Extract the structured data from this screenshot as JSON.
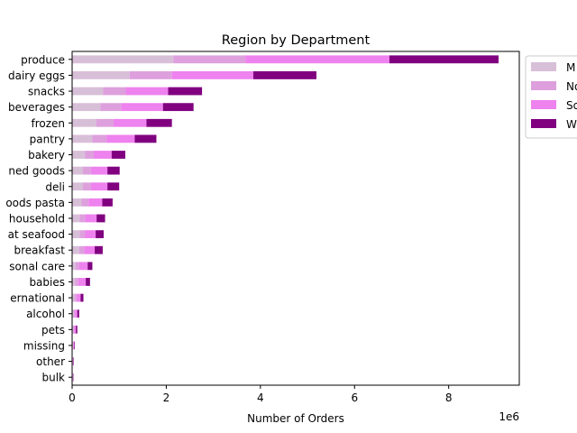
{
  "chart_data": {
    "type": "bar",
    "orientation": "horizontal",
    "stacked": true,
    "title": "Region by Department",
    "xlabel": "Number of Orders",
    "ylabel": "",
    "x_scale_label": "1e6",
    "xlim": [
      0,
      9500000
    ],
    "xticks": [
      0,
      2000000,
      4000000,
      6000000,
      8000000
    ],
    "xtick_labels": [
      "0",
      "2",
      "4",
      "6",
      "8"
    ],
    "grid": false,
    "legend_position": "outside-top-right",
    "categories": [
      "produce",
      "dairy eggs",
      "snacks",
      "beverages",
      "frozen",
      "pantry",
      "bakery",
      "canned goods",
      "deli",
      "dry goods pasta",
      "household",
      "meat seafood",
      "breakfast",
      "personal care",
      "babies",
      "international",
      "alcohol",
      "pets",
      "missing",
      "other",
      "bulk"
    ],
    "tick_labels_visible": [
      "produce",
      "dairy eggs",
      "snacks",
      "beverages",
      "frozen",
      "pantry",
      "bakery",
      "ned goods",
      "deli",
      "oods pasta",
      "household",
      "at seafood",
      "breakfast",
      "sonal care",
      "babies",
      "ernational",
      "alcohol",
      "pets",
      "missing",
      "other",
      "bulk"
    ],
    "series": [
      {
        "name": "Midwest",
        "legend_label": "M",
        "color": "#d8bfd8",
        "values": [
          2150000,
          1220000,
          660000,
          600000,
          510000,
          430000,
          270000,
          230000,
          230000,
          200000,
          160000,
          160000,
          150000,
          70000,
          60000,
          50000,
          30000,
          20000,
          15000,
          8000,
          7000
        ]
      },
      {
        "name": "Northeast",
        "legend_label": "No",
        "color": "#dda0dd",
        "values": [
          1530000,
          900000,
          480000,
          440000,
          370000,
          300000,
          190000,
          170000,
          170000,
          150000,
          120000,
          110000,
          110000,
          80000,
          70000,
          40000,
          30000,
          20000,
          10000,
          7000,
          6000
        ]
      },
      {
        "name": "South",
        "legend_label": "So",
        "color": "#ee82ee",
        "values": [
          3060000,
          1730000,
          900000,
          890000,
          700000,
          600000,
          380000,
          350000,
          350000,
          290000,
          240000,
          230000,
          220000,
          180000,
          160000,
          90000,
          50000,
          40000,
          20000,
          12000,
          10000
        ]
      },
      {
        "name": "West",
        "legend_label": "W",
        "color": "#800080",
        "values": [
          2320000,
          1340000,
          720000,
          650000,
          540000,
          460000,
          290000,
          260000,
          250000,
          220000,
          180000,
          170000,
          170000,
          100000,
          90000,
          60000,
          40000,
          30000,
          12000,
          8000,
          7000
        ]
      }
    ]
  }
}
